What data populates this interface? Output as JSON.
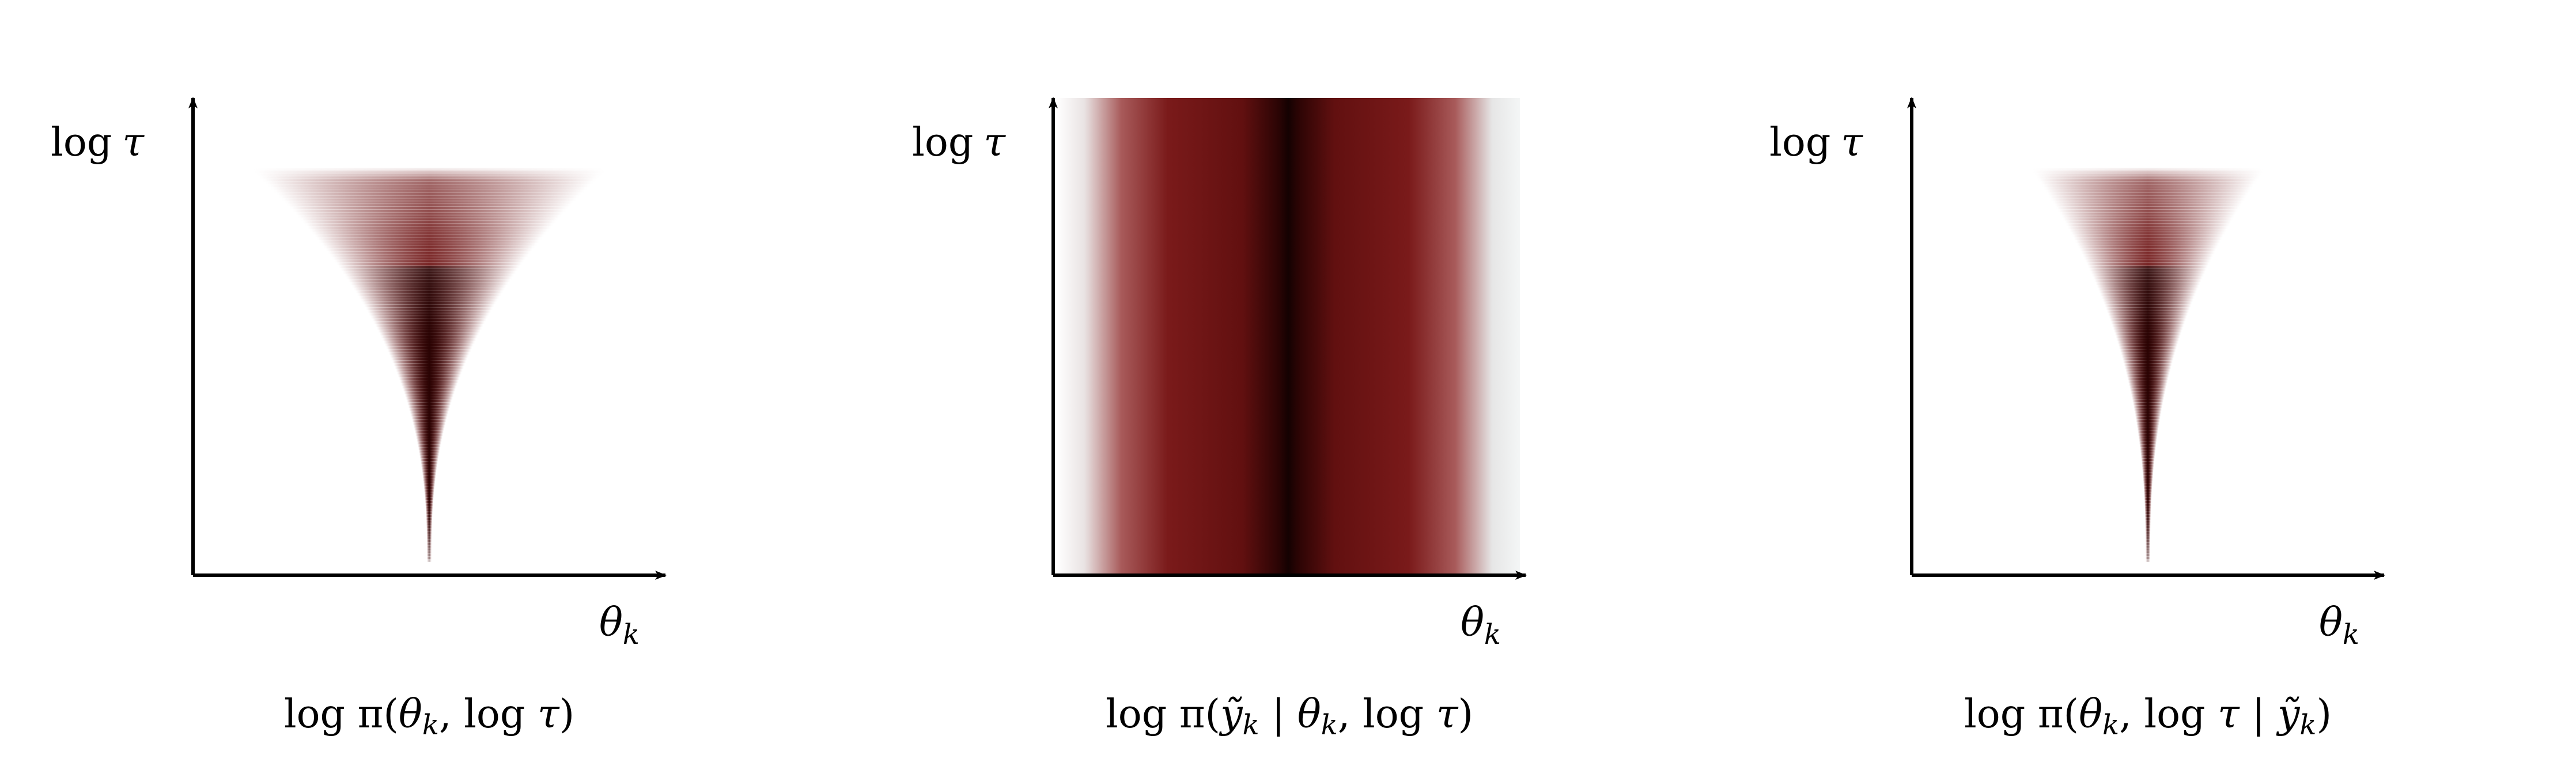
{
  "panels": [
    {
      "id": "prior",
      "ylabel": {
        "fn": "log",
        "var": "τ"
      },
      "xlabel": {
        "var": "θ",
        "sub": "k"
      },
      "caption": [
        {
          "t": "log",
          "s": "n"
        },
        {
          "t": " π(",
          "s": "n"
        },
        {
          "t": "θ",
          "s": "i"
        },
        {
          "t": "k",
          "s": "sub"
        },
        {
          "t": ", log ",
          "s": "n"
        },
        {
          "t": "τ",
          "s": "i"
        },
        {
          "t": ")",
          "s": "n"
        }
      ],
      "density": {
        "kind": "funnel",
        "color": "#6b0f0f",
        "top_width_frac": 0.46,
        "tip_depth_frac": 0.92
      }
    },
    {
      "id": "likelihood",
      "ylabel": {
        "fn": "log",
        "var": "τ"
      },
      "xlabel": {
        "var": "θ",
        "sub": "k"
      },
      "caption": [
        {
          "t": "log",
          "s": "n"
        },
        {
          "t": " π(",
          "s": "n"
        },
        {
          "t": "ỹ",
          "s": "i"
        },
        {
          "t": "k",
          "s": "sub"
        },
        {
          "t": " | ",
          "s": "n"
        },
        {
          "t": "θ",
          "s": "i"
        },
        {
          "t": "k",
          "s": "sub"
        },
        {
          "t": ", log ",
          "s": "n"
        },
        {
          "t": "τ",
          "s": "i"
        },
        {
          "t": ")",
          "s": "n"
        }
      ],
      "density": {
        "kind": "band",
        "color": "#6b0f0f"
      }
    },
    {
      "id": "posterior",
      "ylabel": {
        "fn": "log",
        "var": "τ"
      },
      "xlabel": {
        "var": "θ",
        "sub": "k"
      },
      "caption": [
        {
          "t": "log",
          "s": "n"
        },
        {
          "t": " π(",
          "s": "n"
        },
        {
          "t": "θ",
          "s": "i"
        },
        {
          "t": "k",
          "s": "sub"
        },
        {
          "t": ", log ",
          "s": "n"
        },
        {
          "t": "τ",
          "s": "i"
        },
        {
          "t": " | ",
          "s": "n"
        },
        {
          "t": "ỹ",
          "s": "i"
        },
        {
          "t": "k",
          "s": "sub"
        },
        {
          "t": ")",
          "s": "n"
        }
      ],
      "density": {
        "kind": "funnel",
        "color": "#6b0f0f",
        "top_width_frac": 0.3,
        "tip_depth_frac": 0.92
      }
    }
  ]
}
